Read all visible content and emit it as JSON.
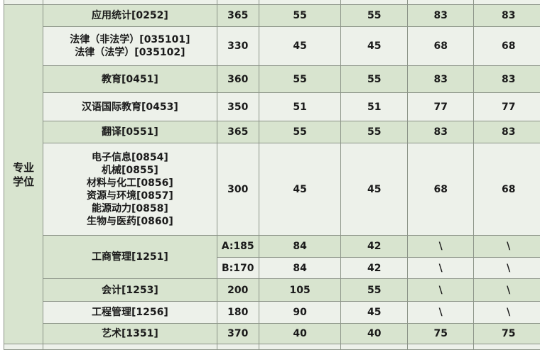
{
  "category": "专业\n学位",
  "rows": [
    {
      "name": "应用统计[0252]",
      "total": "365",
      "c1": "55",
      "c2": "55",
      "c3": "83",
      "c4": "83",
      "shade": "g"
    },
    {
      "name": "法律（非法学）[035101]\n法律（法学）[035102]",
      "total": "330",
      "c1": "45",
      "c2": "45",
      "c3": "68",
      "c4": "68",
      "shade": "l"
    },
    {
      "name": "教育[0451]",
      "total": "360",
      "c1": "55",
      "c2": "55",
      "c3": "83",
      "c4": "83",
      "shade": "g"
    },
    {
      "name": "汉语国际教育[0453]",
      "total": "350",
      "c1": "51",
      "c2": "51",
      "c3": "77",
      "c4": "77",
      "shade": "l"
    },
    {
      "name": "翻译[0551]",
      "total": "365",
      "c1": "55",
      "c2": "55",
      "c3": "83",
      "c4": "83",
      "shade": "g"
    },
    {
      "name": "电子信息[0854]\n机械[0855]\n材料与化工[0856]\n资源与环境[0857]\n能源动力[0858]\n生物与医药[0860]",
      "total": "300",
      "c1": "45",
      "c2": "45",
      "c3": "68",
      "c4": "68",
      "shade": "l"
    },
    {
      "name": "工商管理[1251]",
      "sub": [
        {
          "total": "A:185",
          "c1": "84",
          "c2": "42",
          "c3": "\\",
          "c4": "\\",
          "shade": "g"
        },
        {
          "total": "B:170",
          "c1": "84",
          "c2": "42",
          "c3": "\\",
          "c4": "\\",
          "shade": "l"
        }
      ],
      "shade": "g"
    },
    {
      "name": "会计[1253]",
      "total": "200",
      "c1": "105",
      "c2": "55",
      "c3": "\\",
      "c4": "\\",
      "shade": "g"
    },
    {
      "name": "工程管理[1256]",
      "total": "180",
      "c1": "90",
      "c2": "45",
      "c3": "\\",
      "c4": "\\",
      "shade": "l"
    },
    {
      "name": "艺术[1351]",
      "total": "370",
      "c1": "40",
      "c2": "40",
      "c3": "75",
      "c4": "75",
      "shade": "g"
    }
  ],
  "colors": {
    "row_green": "#d8e4cf",
    "row_light": "#edf1ea",
    "border": "#8c9488"
  }
}
